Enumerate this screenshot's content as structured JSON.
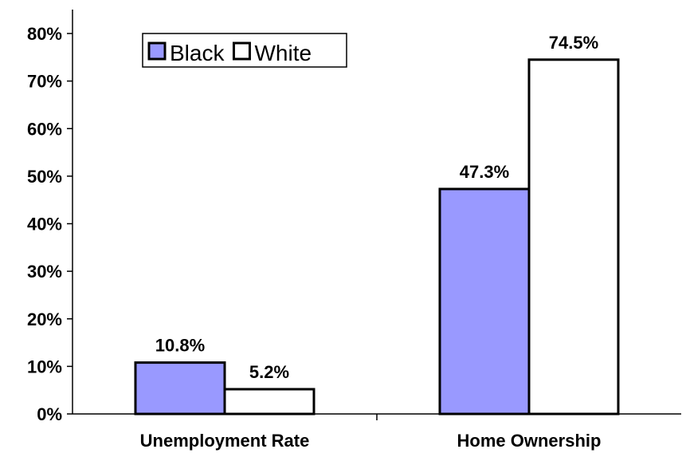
{
  "chart_data": {
    "type": "bar",
    "categories": [
      "Unemployment Rate",
      "Home Ownership"
    ],
    "series": [
      {
        "name": "Black",
        "values": [
          10.8,
          47.3
        ],
        "labels": [
          "10.8%",
          "47.3%"
        ],
        "color": "#9999ff"
      },
      {
        "name": "White",
        "values": [
          5.2,
          74.5
        ],
        "labels": [
          "5.2%",
          "74.5%"
        ],
        "color": "#ffffff"
      }
    ],
    "yticks": [
      "0%",
      "10%",
      "20%",
      "30%",
      "40%",
      "50%",
      "60%",
      "70%",
      "80%"
    ],
    "ylim": [
      0,
      80
    ],
    "grid": false,
    "legend": "top-left"
  }
}
